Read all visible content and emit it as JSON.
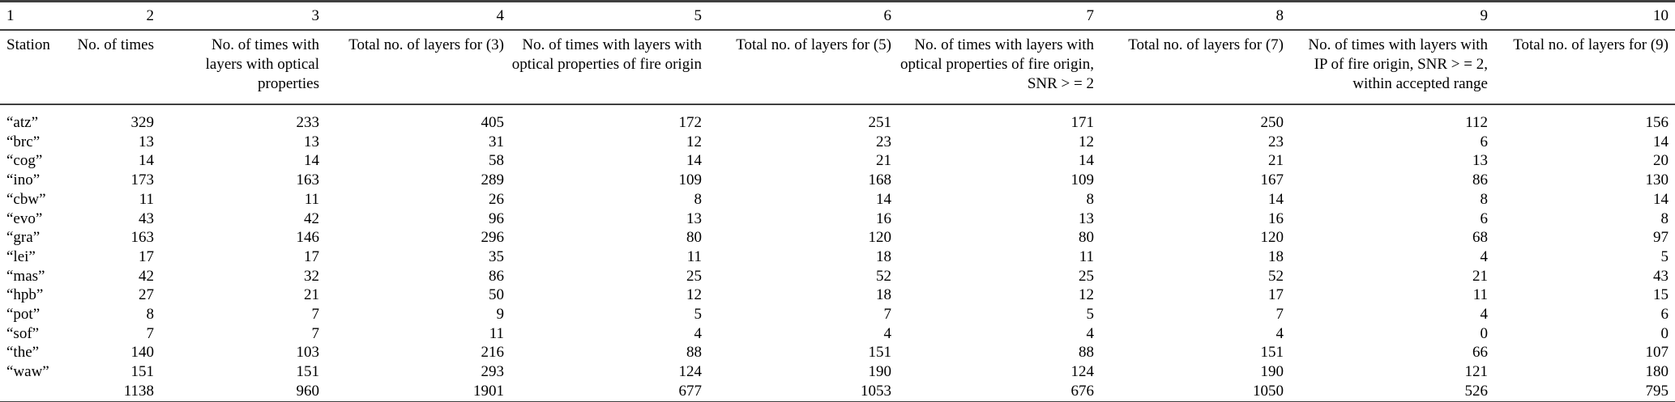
{
  "table": {
    "column_numbers": [
      "1",
      "2",
      "3",
      "4",
      "5",
      "6",
      "7",
      "8",
      "9",
      "10"
    ],
    "columns": [
      {
        "label": "Station"
      },
      {
        "label": "No. of times"
      },
      {
        "label": "No. of times with\nlayers with optical\nproperties"
      },
      {
        "label": "Total no. of layers for (3)"
      },
      {
        "label": "No. of times with layers with\noptical properties of fire origin"
      },
      {
        "label": "Total no. of layers for (5)"
      },
      {
        "label": "No. of times with layers with\noptical properties of fire origin,\nSNR > = 2"
      },
      {
        "label": "Total no. of layers for (7)"
      },
      {
        "label": "No. of times with layers with\nIP of fire origin, SNR > = 2,\nwithin accepted range"
      },
      {
        "label": "Total no. of layers for (9)"
      }
    ],
    "rows": [
      {
        "station": "“atz”",
        "values": [
          329,
          233,
          405,
          172,
          251,
          171,
          250,
          112,
          156
        ]
      },
      {
        "station": "“brc”",
        "values": [
          13,
          13,
          31,
          12,
          23,
          12,
          23,
          6,
          14
        ]
      },
      {
        "station": "“cog”",
        "values": [
          14,
          14,
          58,
          14,
          21,
          14,
          21,
          13,
          20
        ]
      },
      {
        "station": "“ino”",
        "values": [
          173,
          163,
          289,
          109,
          168,
          109,
          167,
          86,
          130
        ]
      },
      {
        "station": "“cbw”",
        "values": [
          11,
          11,
          26,
          8,
          14,
          8,
          14,
          8,
          14
        ]
      },
      {
        "station": "“evo”",
        "values": [
          43,
          42,
          96,
          13,
          16,
          13,
          16,
          6,
          8
        ]
      },
      {
        "station": "“gra”",
        "values": [
          163,
          146,
          296,
          80,
          120,
          80,
          120,
          68,
          97
        ]
      },
      {
        "station": "“lei”",
        "values": [
          17,
          17,
          35,
          11,
          18,
          11,
          18,
          4,
          5
        ]
      },
      {
        "station": "“mas”",
        "values": [
          42,
          32,
          86,
          25,
          52,
          25,
          52,
          21,
          43
        ]
      },
      {
        "station": "“hpb”",
        "values": [
          27,
          21,
          50,
          12,
          18,
          12,
          17,
          11,
          15
        ]
      },
      {
        "station": "“pot”",
        "values": [
          8,
          7,
          9,
          5,
          7,
          5,
          7,
          4,
          6
        ]
      },
      {
        "station": "“sof”",
        "values": [
          7,
          7,
          11,
          4,
          4,
          4,
          4,
          0,
          0
        ]
      },
      {
        "station": "“the”",
        "values": [
          140,
          103,
          216,
          88,
          151,
          88,
          151,
          66,
          107
        ]
      },
      {
        "station": "“waw”",
        "values": [
          151,
          151,
          293,
          124,
          190,
          124,
          190,
          121,
          180
        ]
      }
    ],
    "totals": {
      "station": "",
      "values": [
        1138,
        960,
        1901,
        677,
        1053,
        676,
        1050,
        526,
        795
      ]
    }
  }
}
